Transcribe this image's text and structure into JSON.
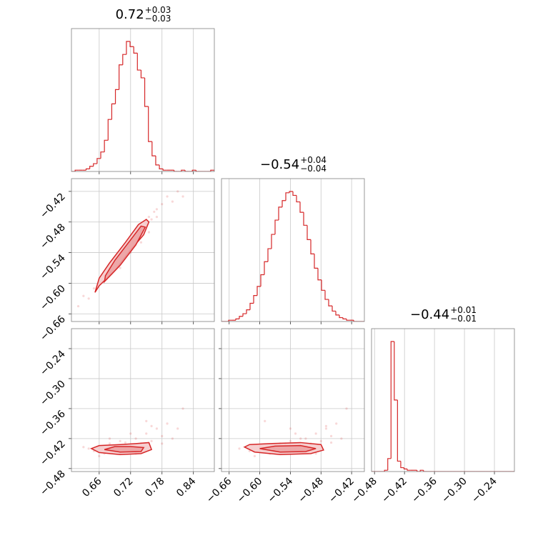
{
  "chart_data": [
    {
      "type": "histogram",
      "title": {
        "value": "0.72",
        "plus": "+0.03",
        "minus": "−0.03"
      },
      "color": "#d62728",
      "bins": [
        0.607,
        0.614,
        0.621,
        0.628,
        0.635,
        0.642,
        0.649,
        0.656,
        0.663,
        0.67,
        0.677,
        0.684,
        0.691,
        0.698,
        0.705,
        0.712,
        0.719,
        0.726,
        0.733,
        0.74,
        0.747,
        0.754,
        0.761,
        0.768,
        0.775,
        0.782,
        0.789,
        0.796,
        0.803,
        0.81,
        0.817,
        0.824,
        0.831,
        0.838,
        0.845,
        0.852,
        0.859,
        0.866,
        0.873,
        0.88
      ],
      "values": [
        0,
        1,
        1,
        1,
        2,
        4,
        6,
        10,
        15,
        24,
        40,
        52,
        63,
        82,
        90,
        100,
        96,
        91,
        78,
        72,
        50,
        23,
        12,
        5,
        2,
        1,
        1,
        1,
        0,
        0,
        1,
        0,
        0,
        1,
        0,
        0,
        0,
        0,
        1
      ]
    },
    {
      "type": "histogram",
      "title": {
        "value": "−0.54",
        "plus": "+0.04",
        "minus": "−0.04"
      },
      "color": "#d62728",
      "bins": [
        -0.675,
        -0.668,
        -0.661,
        -0.654,
        -0.647,
        -0.64,
        -0.633,
        -0.626,
        -0.619,
        -0.612,
        -0.605,
        -0.598,
        -0.591,
        -0.584,
        -0.577,
        -0.57,
        -0.563,
        -0.556,
        -0.549,
        -0.542,
        -0.535,
        -0.528,
        -0.521,
        -0.514,
        -0.507,
        -0.5,
        -0.493,
        -0.486,
        -0.479,
        -0.472,
        -0.465,
        -0.458,
        -0.451,
        -0.444,
        -0.437,
        -0.43,
        -0.423,
        -0.416,
        -0.409,
        -0.402,
        -0.395
      ],
      "values": [
        0,
        0,
        1,
        1,
        2,
        4,
        6,
        9,
        14,
        20,
        27,
        36,
        46,
        56,
        67,
        78,
        88,
        93,
        99,
        100,
        97,
        92,
        84,
        74,
        63,
        52,
        41,
        32,
        24,
        17,
        12,
        8,
        5,
        3,
        2,
        1,
        1,
        0,
        0,
        0
      ]
    },
    {
      "type": "histogram",
      "title": {
        "value": "−0.44",
        "plus": "+0.01",
        "minus": "−0.01"
      },
      "color": "#d62728",
      "bins": [
        -0.486,
        -0.4795,
        -0.473,
        -0.4665,
        -0.46,
        -0.4535,
        -0.447,
        -0.4405,
        -0.434,
        -0.4275,
        -0.421,
        -0.4145,
        -0.408,
        -0.4015,
        -0.395,
        -0.3885,
        -0.382,
        -0.3755,
        -0.369,
        -0.3625,
        -0.356,
        -0.3495,
        -0.343,
        -0.3365,
        -0.33,
        -0.3235,
        -0.317,
        -0.3105,
        -0.304,
        -0.2975,
        -0.291,
        -0.2845,
        -0.278,
        -0.2715,
        -0.265,
        -0.2585,
        -0.252,
        -0.2455,
        -0.239,
        -0.2325,
        -0.226,
        -0.2195,
        -0.213,
        -0.2065,
        -0.2
      ],
      "values": [
        0,
        0,
        0,
        0,
        1,
        10,
        100,
        55,
        8,
        3,
        2,
        1,
        1,
        1,
        0,
        1,
        0,
        0,
        0,
        0,
        0,
        0,
        0,
        0,
        0,
        0,
        0,
        0,
        0,
        0,
        0,
        0,
        0,
        0,
        0,
        0,
        0,
        0,
        0,
        0,
        0,
        0,
        0,
        0
      ],
      "xlim": [
        -0.486,
        -0.2
      ],
      "xticks": [
        {
          "value": -0.48,
          "label": "−0.48"
        },
        {
          "value": -0.42,
          "label": "−0.42"
        },
        {
          "value": -0.36,
          "label": "−0.36"
        },
        {
          "value": -0.3,
          "label": "−0.30"
        },
        {
          "value": -0.24,
          "label": "−0.24"
        }
      ]
    },
    {
      "type": "scatter",
      "color": "#d62728",
      "x": [
        0.64,
        0.65,
        0.66,
        0.67,
        0.68,
        0.69,
        0.7,
        0.705,
        0.71,
        0.715,
        0.72,
        0.725,
        0.73,
        0.735,
        0.74,
        0.745,
        0.75,
        0.755,
        0.76,
        0.765,
        0.77,
        0.78,
        0.79,
        0.8,
        0.81,
        0.62,
        0.63,
        0.7,
        0.74,
        0.77,
        0.82,
        0.755
      ],
      "y": [
        -0.63,
        -0.61,
        -0.6,
        -0.585,
        -0.57,
        -0.56,
        -0.55,
        -0.54,
        -0.535,
        -0.53,
        -0.54,
        -0.52,
        -0.515,
        -0.51,
        -0.5,
        -0.49,
        -0.485,
        -0.47,
        -0.475,
        -0.46,
        -0.455,
        -0.445,
        -0.43,
        -0.44,
        -0.42,
        -0.645,
        -0.625,
        -0.57,
        -0.52,
        -0.47,
        -0.43,
        -0.5
      ],
      "contours": [
        {
          "x": [
            0.652,
            0.66,
            0.69,
            0.72,
            0.745,
            0.755,
            0.75,
            0.735,
            0.71,
            0.68,
            0.66
          ],
          "y": [
            -0.618,
            -0.605,
            -0.575,
            -0.535,
            -0.505,
            -0.48,
            -0.475,
            -0.485,
            -0.52,
            -0.56,
            -0.59
          ]
        },
        {
          "x": [
            0.67,
            0.7,
            0.73,
            0.748,
            0.74,
            0.72,
            0.69,
            0.672
          ],
          "y": [
            -0.597,
            -0.565,
            -0.525,
            -0.49,
            -0.488,
            -0.515,
            -0.555,
            -0.585
          ]
        }
      ],
      "ylim": [
        -0.675,
        -0.395
      ],
      "yticks": [
        {
          "value": -0.66,
          "label": "−0.66"
        },
        {
          "value": -0.6,
          "label": "−0.60"
        },
        {
          "value": -0.54,
          "label": "−0.54"
        },
        {
          "value": -0.48,
          "label": "−0.48"
        },
        {
          "value": -0.42,
          "label": "−0.42"
        }
      ]
    },
    {
      "type": "scatter",
      "color": "#d62728",
      "x": [
        0.64,
        0.65,
        0.66,
        0.67,
        0.68,
        0.69,
        0.7,
        0.71,
        0.72,
        0.73,
        0.74,
        0.75,
        0.76,
        0.77,
        0.78,
        0.79,
        0.8,
        0.82,
        0.66,
        0.7,
        0.72,
        0.74,
        0.76,
        0.78,
        0.68,
        0.73,
        0.75,
        0.71,
        0.81,
        0.63
      ],
      "y": [
        -0.44,
        -0.445,
        -0.438,
        -0.45,
        -0.43,
        -0.445,
        -0.425,
        -0.44,
        -0.435,
        -0.42,
        -0.43,
        -0.41,
        -0.425,
        -0.4,
        -0.415,
        -0.39,
        -0.42,
        -0.36,
        -0.455,
        -0.45,
        -0.41,
        -0.44,
        -0.395,
        -0.43,
        -0.42,
        -0.45,
        -0.385,
        -0.428,
        -0.4,
        -0.437
      ],
      "contours": [
        {
          "x": [
            0.645,
            0.66,
            0.7,
            0.74,
            0.76,
            0.755,
            0.73,
            0.7,
            0.66
          ],
          "y": [
            -0.44,
            -0.448,
            -0.452,
            -0.45,
            -0.442,
            -0.428,
            -0.43,
            -0.432,
            -0.434
          ]
        },
        {
          "x": [
            0.67,
            0.7,
            0.74,
            0.745,
            0.72,
            0.69
          ],
          "y": [
            -0.442,
            -0.447,
            -0.446,
            -0.438,
            -0.436,
            -0.436
          ]
        }
      ],
      "xlim": [
        0.607,
        0.88
      ],
      "xticks": [
        0.66,
        0.72,
        0.78,
        0.84
      ],
      "ylim": [
        -0.486,
        -0.2
      ],
      "yticks": [
        {
          "value": -0.48,
          "label": "−0.48"
        },
        {
          "value": -0.42,
          "label": "−0.42"
        },
        {
          "value": -0.36,
          "label": "−0.36"
        },
        {
          "value": -0.3,
          "label": "−0.30"
        },
        {
          "value": -0.24,
          "label": "−0.24"
        }
      ]
    },
    {
      "type": "scatter",
      "color": "#d62728",
      "x": [
        -0.64,
        -0.62,
        -0.6,
        -0.58,
        -0.56,
        -0.55,
        -0.54,
        -0.53,
        -0.52,
        -0.51,
        -0.5,
        -0.49,
        -0.48,
        -0.47,
        -0.46,
        -0.45,
        -0.44,
        -0.43,
        -0.61,
        -0.57,
        -0.53,
        -0.5,
        -0.47,
        -0.55,
        -0.52,
        -0.49,
        -0.59,
        -0.46,
        -0.54,
        -0.51
      ],
      "y": [
        -0.44,
        -0.445,
        -0.438,
        -0.45,
        -0.43,
        -0.445,
        -0.425,
        -0.44,
        -0.435,
        -0.42,
        -0.43,
        -0.41,
        -0.425,
        -0.4,
        -0.415,
        -0.39,
        -0.42,
        -0.36,
        -0.455,
        -0.45,
        -0.41,
        -0.44,
        -0.395,
        -0.43,
        -0.42,
        -0.45,
        -0.385,
        -0.428,
        -0.4,
        -0.437
      ],
      "contours": [
        {
          "x": [
            -0.63,
            -0.61,
            -0.56,
            -0.5,
            -0.475,
            -0.48,
            -0.52,
            -0.58,
            -0.62
          ],
          "y": [
            -0.437,
            -0.447,
            -0.452,
            -0.45,
            -0.443,
            -0.432,
            -0.428,
            -0.43,
            -0.432
          ]
        },
        {
          "x": [
            -0.6,
            -0.56,
            -0.51,
            -0.49,
            -0.52,
            -0.57
          ],
          "y": [
            -0.44,
            -0.447,
            -0.446,
            -0.44,
            -0.434,
            -0.435
          ]
        }
      ],
      "xlim": [
        -0.675,
        -0.395
      ],
      "xticks": [
        {
          "value": -0.66,
          "label": "−0.66"
        },
        {
          "value": -0.6,
          "label": "−0.60"
        },
        {
          "value": -0.54,
          "label": "−0.54"
        },
        {
          "value": -0.48,
          "label": "−0.48"
        },
        {
          "value": -0.42,
          "label": "−0.42"
        }
      ]
    }
  ]
}
